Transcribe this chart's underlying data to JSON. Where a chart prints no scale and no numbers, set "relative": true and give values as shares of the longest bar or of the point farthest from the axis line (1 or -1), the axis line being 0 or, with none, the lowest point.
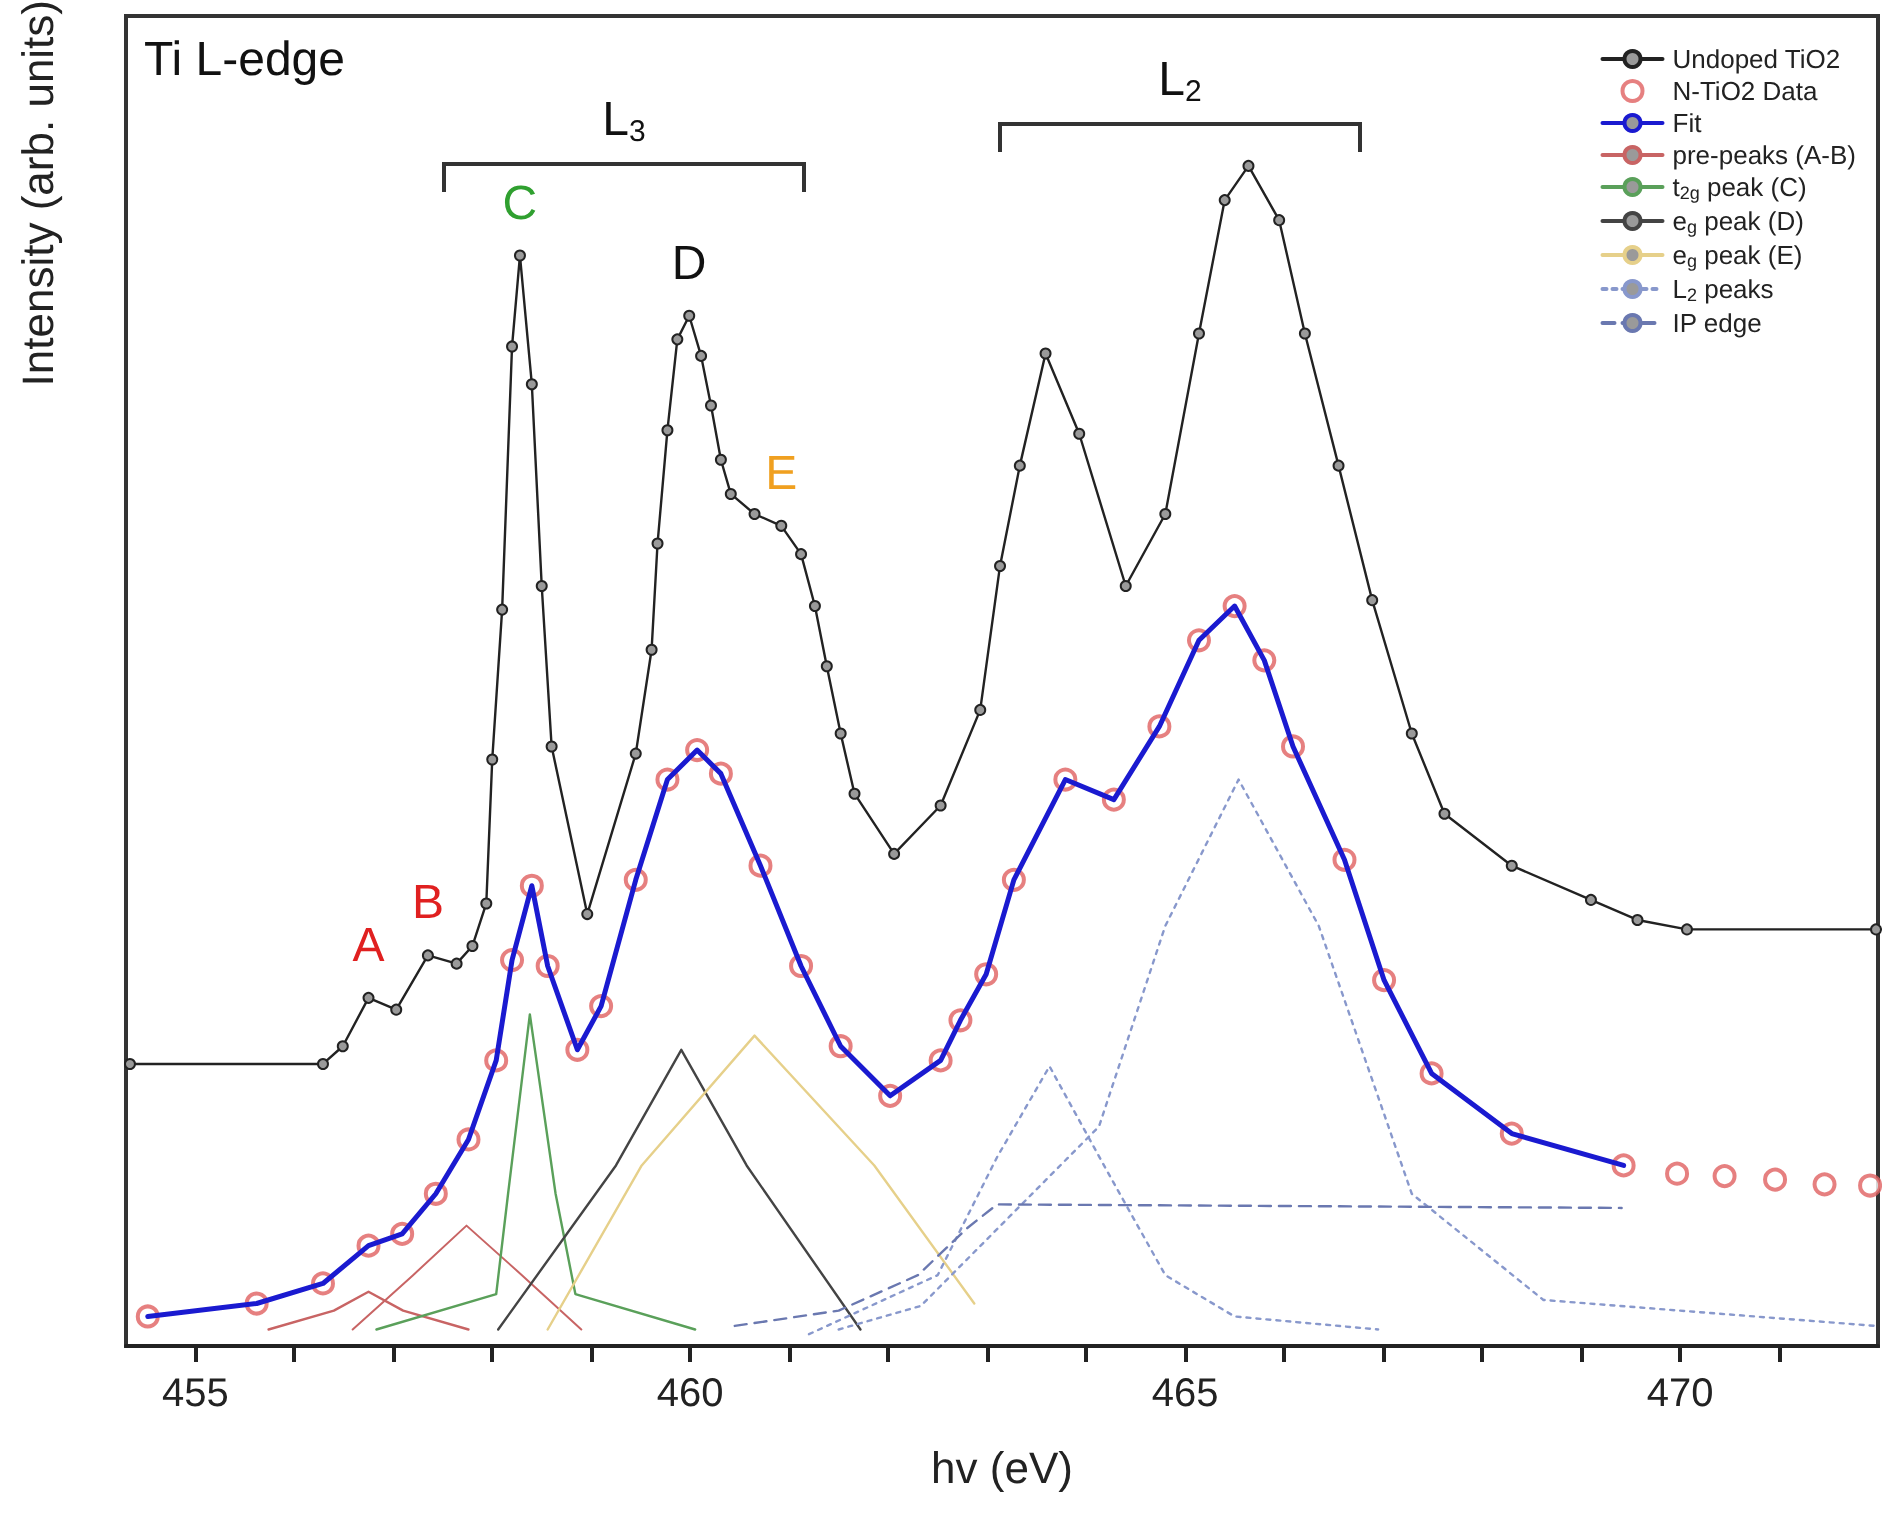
{
  "chart_data": {
    "type": "line",
    "relative": true,
    "xlabel": "hv (eV)",
    "ylabel": "Intensity (arb. units)",
    "xlim": [
      454.3,
      472
    ],
    "xticks": [
      455,
      {
        "value": 456,
        "label": null
      },
      {
        "value": 457,
        "label": null
      },
      {
        "value": 458,
        "label": null
      },
      {
        "value": 459,
        "label": null
      },
      460,
      {
        "value": 461,
        "label": null
      },
      {
        "value": 462,
        "label": null
      },
      {
        "value": 463,
        "label": null
      },
      {
        "value": 464,
        "label": null
      },
      465,
      {
        "value": 466,
        "label": null
      },
      {
        "value": 467,
        "label": null
      },
      {
        "value": 468,
        "label": null
      },
      {
        "value": 469,
        "label": null
      },
      470,
      {
        "value": 471,
        "label": null
      }
    ],
    "legend": "top right",
    "grid": false,
    "annotations": [
      "Ti L-edge",
      "L$_{3}$",
      "L$_{2}$",
      {
        "text": "A",
        "x": 456.75,
        "y": 0.295
      },
      {
        "text": "B",
        "x": 457.35,
        "y": 0.331
      },
      {
        "text": "C",
        "x": 458.28,
        "y": 0.924
      },
      {
        "text": "D",
        "x": 459.99,
        "y": 0.873
      },
      {
        "text": "E",
        "x": 460.92,
        "y": 0.695
      }
    ],
    "series": [
      {
        "name": "Undoped TiO2",
        "color": "#222222",
        "marker": "circle",
        "x": [
          454.34,
          456.29,
          456.49,
          456.75,
          457.03,
          457.35,
          457.64,
          457.8,
          457.94,
          458.0,
          458.1,
          458.2,
          458.28,
          458.4,
          458.5,
          458.6,
          458.96,
          459.45,
          459.61,
          459.67,
          459.77,
          459.87,
          459.99,
          460.11,
          460.21,
          460.31,
          460.41,
          460.65,
          460.92,
          461.12,
          461.26,
          461.38,
          461.52,
          461.66,
          462.06,
          462.53,
          462.93,
          463.13,
          463.33,
          463.59,
          463.93,
          464.4,
          464.8,
          465.14,
          465.4,
          465.64,
          465.95,
          466.21,
          466.55,
          466.89,
          467.29,
          467.62,
          468.3,
          469.1,
          469.57,
          470.07,
          471.98
        ],
        "values": [
          0.239,
          0.239,
          0.254,
          0.295,
          0.285,
          0.331,
          0.324,
          0.339,
          0.375,
          0.497,
          0.624,
          0.847,
          0.924,
          0.815,
          0.644,
          0.508,
          0.366,
          0.502,
          0.59,
          0.68,
          0.776,
          0.853,
          0.873,
          0.839,
          0.797,
          0.751,
          0.722,
          0.705,
          0.695,
          0.671,
          0.627,
          0.576,
          0.519,
          0.468,
          0.417,
          0.458,
          0.539,
          0.661,
          0.746,
          0.841,
          0.773,
          0.644,
          0.705,
          0.858,
          0.971,
          1.0,
          0.954,
          0.858,
          0.746,
          0.632,
          0.519,
          0.451,
          0.407,
          0.378,
          0.361,
          0.353,
          0.353
        ]
      },
      {
        "name": "N-TiO2 Data",
        "type": "scatter",
        "color": "#e06060",
        "marker": "circle",
        "x": [
          454.52,
          455.62,
          456.29,
          456.75,
          457.09,
          457.43,
          457.76,
          458.04,
          458.2,
          458.4,
          458.56,
          458.86,
          459.1,
          459.45,
          459.77,
          460.07,
          460.31,
          460.71,
          461.12,
          461.52,
          462.02,
          462.53,
          462.73,
          462.99,
          463.27,
          463.79,
          464.28,
          464.74,
          465.14,
          465.5,
          465.8,
          466.09,
          466.61,
          467.01,
          467.49,
          468.3,
          469.43,
          469.97,
          470.45,
          470.96,
          471.46,
          471.92
        ],
        "values": [
          0.025,
          0.036,
          0.053,
          0.085,
          0.095,
          0.129,
          0.175,
          0.242,
          0.327,
          0.39,
          0.322,
          0.251,
          0.288,
          0.395,
          0.48,
          0.505,
          0.485,
          0.407,
          0.322,
          0.254,
          0.212,
          0.242,
          0.276,
          0.315,
          0.395,
          0.48,
          0.463,
          0.525,
          0.598,
          0.627,
          0.581,
          0.508,
          0.412,
          0.31,
          0.231,
          0.18,
          0.153,
          0.146,
          0.144,
          0.141,
          0.137,
          0.136
        ]
      },
      {
        "name": "Fit",
        "color": "#1a1ad0",
        "x": [
          454.52,
          455.62,
          456.29,
          456.75,
          457.09,
          457.43,
          457.76,
          458.04,
          458.2,
          458.4,
          458.56,
          458.86,
          459.1,
          459.45,
          459.77,
          460.07,
          460.31,
          460.71,
          461.12,
          461.52,
          462.02,
          462.53,
          462.73,
          462.99,
          463.27,
          463.79,
          464.28,
          464.74,
          465.14,
          465.5,
          465.8,
          466.09,
          466.61,
          467.01,
          467.49,
          468.3,
          469.43
        ],
        "values": [
          0.025,
          0.036,
          0.053,
          0.085,
          0.095,
          0.129,
          0.175,
          0.242,
          0.327,
          0.39,
          0.322,
          0.251,
          0.288,
          0.395,
          0.48,
          0.505,
          0.485,
          0.407,
          0.322,
          0.254,
          0.212,
          0.242,
          0.276,
          0.315,
          0.395,
          0.48,
          0.463,
          0.525,
          0.598,
          0.627,
          0.581,
          0.508,
          0.412,
          0.31,
          0.231,
          0.18,
          0.153
        ]
      },
      {
        "name": "pre-peaks (A-B)",
        "color": "#c86464",
        "x": [
          455.74,
          456.4,
          456.75,
          457.1,
          457.76
        ],
        "values": [
          0.014,
          0.03,
          0.046,
          0.03,
          0.014
        ]
      },
      {
        "color": "#c86464",
        "x": [
          456.59,
          457.2,
          457.74,
          458.3,
          458.9
        ],
        "values": [
          0.014,
          0.06,
          0.102,
          0.06,
          0.014
        ]
      },
      {
        "name": "t$_{2g}$ peak (C)",
        "color": "#5aa05a",
        "x": [
          456.83,
          458.04,
          458.16,
          458.38,
          458.64,
          458.84,
          460.05
        ],
        "values": [
          0.014,
          0.044,
          0.129,
          0.281,
          0.129,
          0.044,
          0.014
        ]
      },
      {
        "name": "e$_{g}$ peak (D)",
        "color": "#444444",
        "x": [
          458.06,
          459.25,
          459.91,
          460.57,
          461.72
        ],
        "values": [
          0.014,
          0.153,
          0.251,
          0.153,
          0.014
        ]
      },
      {
        "name": "e$_{g}$ peak (E)",
        "color": "#e6d08a",
        "x": [
          458.56,
          459.51,
          460.65,
          461.86,
          462.87
        ],
        "values": [
          0.014,
          0.153,
          0.263,
          0.153,
          0.036
        ]
      },
      {
        "name": "L$_{2}$ peaks",
        "color": "#8898cc",
        "line_style": "dotted",
        "x": [
          461.2,
          462.5,
          463.1,
          463.63,
          464.2,
          464.8,
          465.5,
          466.95
        ],
        "values": [
          0.01,
          0.06,
          0.16,
          0.237,
          0.15,
          0.06,
          0.025,
          0.014
        ]
      },
      {
        "color": "#8898cc",
        "line_style": "dotted",
        "x": [
          461.5,
          462.33,
          464.13,
          464.8,
          465.54,
          466.35,
          467.29,
          468.62,
          471.98
        ],
        "values": [
          0.014,
          0.034,
          0.186,
          0.356,
          0.48,
          0.356,
          0.129,
          0.039,
          0.017
        ]
      },
      {
        "name": "IP edge",
        "color": "#6a78b0",
        "line_style": "dashed",
        "x": [
          460.45,
          461.5,
          462.3,
          462.8,
          463.1,
          469.41
        ],
        "values": [
          0.017,
          0.03,
          0.06,
          0.1,
          0.12,
          0.117
        ]
      }
    ]
  }
}
